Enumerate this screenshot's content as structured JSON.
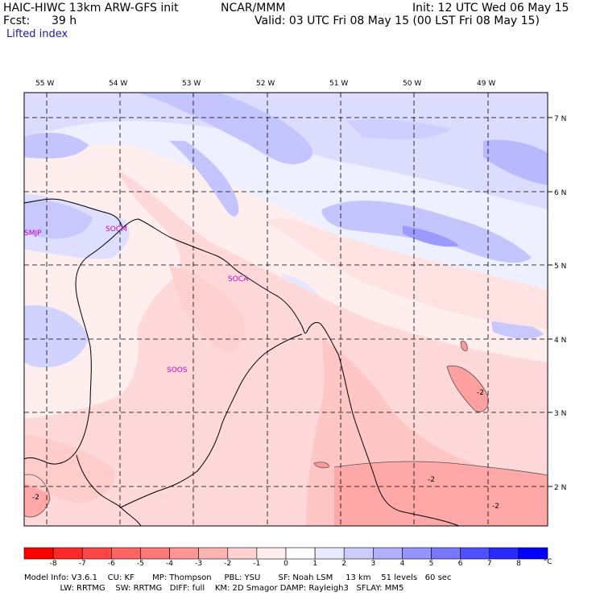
{
  "header": {
    "model": "HAIC-HIWC 13km ARW-GFS init",
    "org": "NCAR/MMM",
    "init": "Init: 12 UTC Wed 06 May 15",
    "fcst_label": "Fcst:",
    "fcst_value": "39 h",
    "valid": "Valid: 03 UTC Fri 08 May 15 (00 LST Fri 08 May 15)",
    "field": "Lifted index"
  },
  "map": {
    "lon_labels": [
      "55 W",
      "54 W",
      "53 W",
      "52 W",
      "51 W",
      "50 W",
      "49 W"
    ],
    "lat_labels": [
      "7 N",
      "6 N",
      "5 N",
      "4 N",
      "3 N",
      "2 N"
    ],
    "stations": [
      "SMJP",
      "SOCM",
      "SOCA",
      "SOOS"
    ],
    "contour_labels": [
      "-2",
      "-2",
      "-2",
      "-2"
    ]
  },
  "colorbar": {
    "ticks": [
      "-8",
      "-7",
      "-6",
      "-5",
      "-4",
      "-3",
      "-2",
      "-1",
      "0",
      "1",
      "2",
      "3",
      "4",
      "5",
      "6",
      "7",
      "8"
    ],
    "unit": "°C",
    "colors": [
      "#ff0000",
      "#ff2828",
      "#ff4646",
      "#ff6464",
      "#ff7878",
      "#ff9696",
      "#ffb4b4",
      "#ffd2d2",
      "#ffeded",
      "#ffffff",
      "#eaeaff",
      "#ccccff",
      "#b0b0ff",
      "#9494ff",
      "#7878ff",
      "#5050ff",
      "#2828ff",
      "#0000ff"
    ]
  },
  "footer": {
    "line1": "Model Info: V3.6.1    CU: KF       MP: Thompson     PBL: YSU       SF: Noah LSM     13 km    51 levels   60 sec",
    "line2": "              LW: RRTMG    SW: RRTMG   DIFF: full    KM: 2D Smagor DAMP: Rayleigh3   SFLAY: MM5"
  }
}
